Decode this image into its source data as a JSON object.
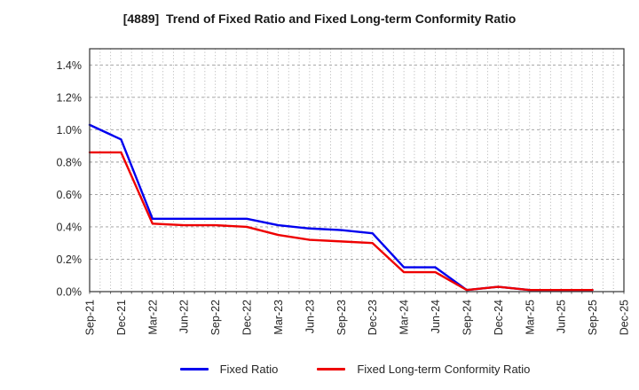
{
  "title": "[4889]  Trend of Fixed Ratio and Fixed Long-term Conformity Ratio",
  "chart_data": {
    "type": "line",
    "title": "[4889]  Trend of Fixed Ratio and Fixed Long-term Conformity Ratio",
    "xlabel": "",
    "ylabel": "",
    "categories": [
      "Sep-21",
      "Dec-21",
      "Mar-22",
      "Jun-22",
      "Sep-22",
      "Dec-22",
      "Mar-23",
      "Jun-23",
      "Sep-23",
      "Dec-23",
      "Mar-24",
      "Jun-24",
      "Sep-24",
      "Dec-24",
      "Mar-25",
      "Jun-25",
      "Sep-25",
      "Dec-25"
    ],
    "months_per_category": 3,
    "series": [
      {
        "name": "Fixed Ratio",
        "color": "#0000ee",
        "values": [
          1.03,
          0.94,
          0.45,
          0.45,
          0.45,
          0.45,
          0.41,
          0.39,
          0.38,
          0.36,
          0.15,
          0.15,
          0.01,
          0.03,
          0.01,
          0.01,
          0.01
        ]
      },
      {
        "name": "Fixed Long-term Conformity Ratio",
        "color": "#ee0000",
        "values": [
          0.86,
          0.86,
          0.42,
          0.41,
          0.41,
          0.4,
          0.35,
          0.32,
          0.31,
          0.3,
          0.12,
          0.12,
          0.01,
          0.03,
          0.01,
          0.01,
          0.01
        ]
      }
    ],
    "ylim": [
      0,
      1.5
    ],
    "y_ticks": [
      0.0,
      0.2,
      0.4,
      0.6,
      0.8,
      1.0,
      1.2,
      1.4
    ],
    "y_tick_labels": [
      "0.0%",
      "0.2%",
      "0.4%",
      "0.6%",
      "0.8%",
      "1.0%",
      "1.2%",
      "1.4%"
    ],
    "grid": true,
    "legend_position": "bottom center",
    "note_last_category_has_no_data": true
  }
}
